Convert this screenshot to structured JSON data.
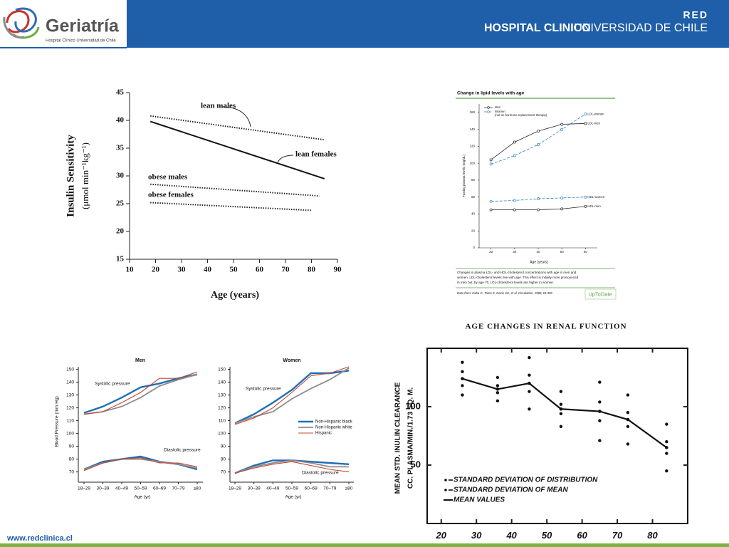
{
  "header": {
    "logo_title": "Geriatría",
    "logo_subtitle": "Hospital Clínico Universidad de Chile",
    "network": "RED",
    "hospital_bold": "HOSPITAL CLINICO",
    "hospital_regular": "UNIVERSIDAD DE CHILE"
  },
  "footer": {
    "url": "www.redclinica.cl"
  },
  "chart_data": [
    {
      "type": "line",
      "y_label": "Insulin Sensitivity",
      "y_label_units": "(μmol min⁻¹kg⁻¹)",
      "x_label": "Age (years)",
      "xlim": [
        10,
        90
      ],
      "xticks": [
        10,
        20,
        30,
        40,
        50,
        60,
        70,
        80,
        90
      ],
      "ylim": [
        15,
        45
      ],
      "yticks": [
        15,
        20,
        25,
        30,
        35,
        40,
        45
      ],
      "series": [
        {
          "name": "lean males",
          "color": "#222222",
          "dash": "dotted",
          "x": [
            18,
            85
          ],
          "values": [
            40.8,
            36.5
          ]
        },
        {
          "name": "lean females",
          "color": "#111111",
          "dash": "solid",
          "x": [
            18,
            85
          ],
          "values": [
            39.8,
            29.5
          ]
        },
        {
          "name": "obese males",
          "color": "#222222",
          "dash": "dotted",
          "x": [
            18,
            83
          ],
          "values": [
            28.5,
            26.4
          ]
        },
        {
          "name": "obese females",
          "color": "#222222",
          "dash": "dotted",
          "x": [
            18,
            80
          ],
          "values": [
            25.2,
            23.8
          ]
        }
      ]
    },
    {
      "type": "line",
      "title": "Change in lipid levels with age",
      "y_label": "Fasting plasma levels (mg/dL)",
      "x_label": "Age (years)",
      "xlim": [
        15,
        65
      ],
      "xticks": [
        20,
        30,
        40,
        50,
        60
      ],
      "ylim": [
        0,
        170
      ],
      "yticks": [
        0,
        20,
        40,
        60,
        80,
        100,
        120,
        140,
        160
      ],
      "legend": [
        {
          "name": "Men",
          "color": "#222222",
          "dash": "solid"
        },
        {
          "name": "Women",
          "note": "(not on hormone replacement therapy)",
          "color": "#2a7fc0",
          "dash": "dashed"
        }
      ],
      "series": [
        {
          "name": "LDL-women",
          "color": "#2a7fc0",
          "dash": "dashed",
          "x": [
            20,
            30,
            40,
            50,
            60
          ],
          "values": [
            99,
            109,
            122,
            140,
            158
          ]
        },
        {
          "name": "LDL-men",
          "color": "#222222",
          "dash": "solid",
          "x": [
            20,
            30,
            40,
            50,
            60
          ],
          "values": [
            104,
            125,
            138,
            146,
            147
          ]
        },
        {
          "name": "HDL-women",
          "color": "#2a7fc0",
          "dash": "dashed",
          "x": [
            20,
            30,
            40,
            50,
            60
          ],
          "values": [
            55,
            56,
            58,
            59,
            60
          ]
        },
        {
          "name": "HDL-men",
          "color": "#222222",
          "dash": "solid",
          "x": [
            20,
            30,
            40,
            50,
            60
          ],
          "values": [
            45,
            45,
            45,
            46,
            49
          ]
        }
      ],
      "caption": [
        "Changes in plasma LDL- and HDL-cholesterol concentrations with age in men and",
        "women. LDL-cholesterol levels rise with age. This effect is initially more pronounced",
        "in men but, by age 70, LDL-cholesterol levels are higher in women."
      ],
      "source": "Data from: Kaba G, Tame E, Davis CE, et al. Circulation. 1980; 61:302.",
      "logo": "UpToDate"
    },
    {
      "type": "line",
      "title": "Men",
      "y_label": "Blood Pressure (mm Hg)",
      "x_label": "Age (yr)",
      "categories": [
        "18–29",
        "30–39",
        "40–49",
        "50–59",
        "60–69",
        "70–79",
        "≥80"
      ],
      "ylim": [
        62,
        152
      ],
      "yticks": [
        70,
        80,
        90,
        100,
        110,
        120,
        130,
        140,
        150
      ],
      "annotations": [
        "Systolic pressure",
        "Diastolic pressure"
      ],
      "series": [
        {
          "color": "#1f6fb5",
          "width": 2.4,
          "values": [
            116,
            121,
            128,
            136,
            139,
            143,
            146
          ]
        },
        {
          "color": "#8c8c8c",
          "width": 1.8,
          "values": [
            115,
            117,
            121,
            128,
            137,
            142,
            146
          ]
        },
        {
          "color": "#c8452c",
          "width": 1.1,
          "values": [
            115,
            117,
            124,
            132,
            143,
            143,
            148
          ]
        },
        {
          "color": "#1f6fb5",
          "width": 2.4,
          "values": [
            72,
            78,
            80,
            82,
            78,
            76,
            72
          ]
        },
        {
          "color": "#8c8c8c",
          "width": 1.8,
          "values": [
            72,
            77,
            80,
            80,
            78,
            76,
            73
          ]
        },
        {
          "color": "#c8452c",
          "width": 1.1,
          "values": [
            71,
            77,
            80,
            81,
            77,
            77,
            74
          ]
        }
      ]
    },
    {
      "type": "line",
      "title": "Women",
      "x_label": "Age (yr)",
      "categories": [
        "18–29",
        "30–39",
        "40–49",
        "50–59",
        "60–69",
        "70–79",
        "≥80"
      ],
      "ylim": [
        62,
        152
      ],
      "yticks": [
        70,
        80,
        90,
        100,
        110,
        120,
        130,
        140,
        150
      ],
      "annotations": [
        "Systolic pressure",
        "Diastolic pressure"
      ],
      "series": [
        {
          "name": "Non-Hispanic black",
          "color": "#1f6fb5",
          "width": 2.4,
          "values": [
            108,
            115,
            124,
            134,
            147,
            147,
            149
          ]
        },
        {
          "name": "Non-Hispanic white",
          "color": "#8c8c8c",
          "width": 1.8,
          "values": [
            108,
            113,
            117,
            127,
            135,
            142,
            151
          ]
        },
        {
          "name": "Hispanic",
          "color": "#c8452c",
          "width": 1.1,
          "values": [
            107,
            112,
            120,
            132,
            145,
            147,
            152
          ]
        },
        {
          "color": "#1f6fb5",
          "width": 2.4,
          "values": [
            69,
            75,
            79,
            79,
            78,
            77,
            76
          ]
        },
        {
          "color": "#8c8c8c",
          "width": 1.8,
          "values": [
            69,
            74,
            77,
            79,
            77,
            74,
            74
          ]
        },
        {
          "color": "#c8452c",
          "width": 1.1,
          "values": [
            69,
            73,
            76,
            78,
            75,
            72,
            70
          ]
        }
      ]
    },
    {
      "type": "errorbar",
      "title": "AGE CHANGES IN RENAL FUNCTION",
      "y_label": "MEAN STD. INULIN CLEARANCE",
      "y_label_units": "CC. PLASMA/MIN./1.73 SQ. M.",
      "xlim": [
        16,
        90
      ],
      "xticks": [
        20,
        30,
        40,
        50,
        60,
        70,
        80
      ],
      "ylim": [
        0,
        150
      ],
      "yticks": [
        50,
        100
      ],
      "x": [
        26,
        36,
        45,
        54,
        65,
        73,
        84
      ],
      "values": [
        124,
        115,
        120,
        98,
        96,
        89,
        65
      ],
      "sd_mean": [
        6,
        3,
        7,
        4,
        8,
        6,
        5
      ],
      "sd_distribution": [
        14,
        10,
        22,
        15,
        25,
        21,
        20
      ],
      "color": "#111111",
      "legend": [
        "STANDARD DEVIATION OF DISTRIBUTION",
        "STANDARD DEVIATION OF MEAN",
        "MEAN VALUES"
      ]
    }
  ]
}
